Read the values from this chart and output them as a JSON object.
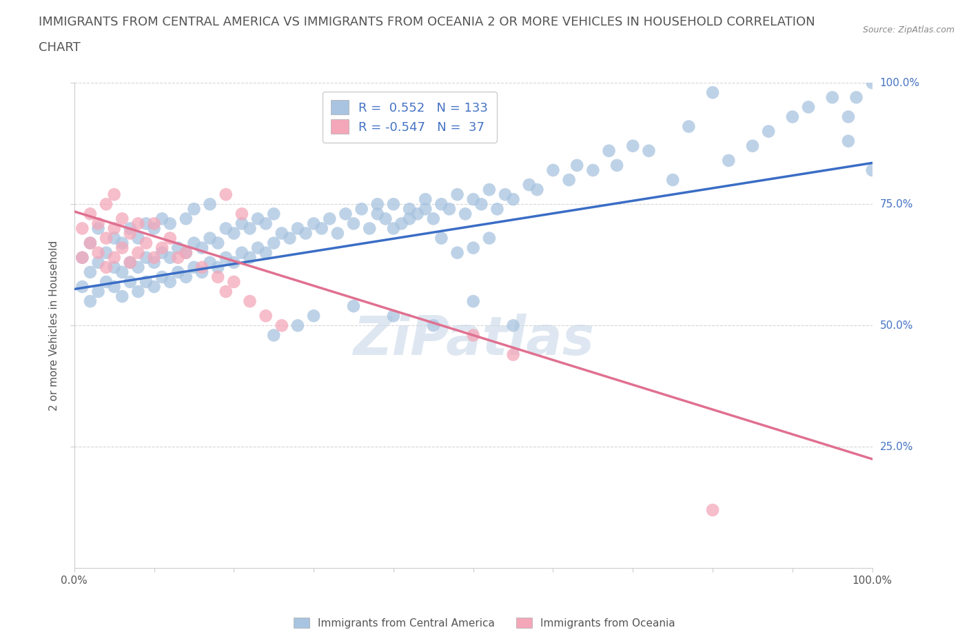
{
  "title_line1": "IMMIGRANTS FROM CENTRAL AMERICA VS IMMIGRANTS FROM OCEANIA 2 OR MORE VEHICLES IN HOUSEHOLD CORRELATION",
  "title_line2": "CHART",
  "source": "Source: ZipAtlas.com",
  "ylabel": "2 or more Vehicles in Household",
  "xlim": [
    0.0,
    1.0
  ],
  "ylim": [
    0.0,
    1.0
  ],
  "x_tick_labels": [
    "0.0%",
    "100.0%"
  ],
  "y_tick_labels": [
    "25.0%",
    "50.0%",
    "75.0%",
    "100.0%"
  ],
  "y_tick_positions": [
    0.25,
    0.5,
    0.75,
    1.0
  ],
  "legend_entries": [
    {
      "label": "Immigrants from Central America",
      "color": "#a8c4e0",
      "R": "0.552",
      "N": "133"
    },
    {
      "label": "Immigrants from Oceania",
      "color": "#f4a7b9",
      "R": "-0.547",
      "N": "37"
    }
  ],
  "blue_scatter_x": [
    0.01,
    0.01,
    0.02,
    0.02,
    0.02,
    0.03,
    0.03,
    0.03,
    0.04,
    0.04,
    0.05,
    0.05,
    0.05,
    0.06,
    0.06,
    0.06,
    0.07,
    0.07,
    0.07,
    0.08,
    0.08,
    0.08,
    0.09,
    0.09,
    0.09,
    0.1,
    0.1,
    0.1,
    0.11,
    0.11,
    0.11,
    0.12,
    0.12,
    0.12,
    0.13,
    0.13,
    0.14,
    0.14,
    0.14,
    0.15,
    0.15,
    0.15,
    0.16,
    0.16,
    0.17,
    0.17,
    0.17,
    0.18,
    0.18,
    0.19,
    0.19,
    0.2,
    0.2,
    0.21,
    0.21,
    0.22,
    0.22,
    0.23,
    0.23,
    0.24,
    0.24,
    0.25,
    0.25,
    0.26,
    0.27,
    0.28,
    0.29,
    0.3,
    0.31,
    0.32,
    0.33,
    0.34,
    0.35,
    0.36,
    0.37,
    0.38,
    0.39,
    0.4,
    0.41,
    0.42,
    0.43,
    0.44,
    0.45,
    0.46,
    0.47,
    0.48,
    0.49,
    0.5,
    0.51,
    0.52,
    0.53,
    0.54,
    0.55,
    0.57,
    0.58,
    0.6,
    0.62,
    0.63,
    0.65,
    0.67,
    0.68,
    0.7,
    0.72,
    0.75,
    0.77,
    0.8,
    0.82,
    0.85,
    0.87,
    0.9,
    0.92,
    0.95,
    0.97,
    0.97,
    0.98,
    1.0,
    1.0,
    0.38,
    0.4,
    0.42,
    0.44,
    0.46,
    0.48,
    0.5,
    0.52,
    0.4,
    0.45,
    0.5,
    0.55,
    0.3,
    0.35,
    0.25,
    0.28
  ],
  "blue_scatter_y": [
    0.58,
    0.64,
    0.55,
    0.61,
    0.67,
    0.57,
    0.63,
    0.7,
    0.59,
    0.65,
    0.58,
    0.62,
    0.68,
    0.56,
    0.61,
    0.67,
    0.59,
    0.63,
    0.7,
    0.57,
    0.62,
    0.68,
    0.59,
    0.64,
    0.71,
    0.58,
    0.63,
    0.7,
    0.6,
    0.65,
    0.72,
    0.59,
    0.64,
    0.71,
    0.61,
    0.66,
    0.6,
    0.65,
    0.72,
    0.62,
    0.67,
    0.74,
    0.61,
    0.66,
    0.63,
    0.68,
    0.75,
    0.62,
    0.67,
    0.64,
    0.7,
    0.63,
    0.69,
    0.65,
    0.71,
    0.64,
    0.7,
    0.66,
    0.72,
    0.65,
    0.71,
    0.67,
    0.73,
    0.69,
    0.68,
    0.7,
    0.69,
    0.71,
    0.7,
    0.72,
    0.69,
    0.73,
    0.71,
    0.74,
    0.7,
    0.73,
    0.72,
    0.75,
    0.71,
    0.74,
    0.73,
    0.76,
    0.72,
    0.75,
    0.74,
    0.77,
    0.73,
    0.76,
    0.75,
    0.78,
    0.74,
    0.77,
    0.76,
    0.79,
    0.78,
    0.82,
    0.8,
    0.83,
    0.82,
    0.86,
    0.83,
    0.87,
    0.86,
    0.8,
    0.91,
    0.98,
    0.84,
    0.87,
    0.9,
    0.93,
    0.95,
    0.97,
    0.88,
    0.93,
    0.97,
    1.0,
    0.82,
    0.75,
    0.7,
    0.72,
    0.74,
    0.68,
    0.65,
    0.66,
    0.68,
    0.52,
    0.5,
    0.55,
    0.5,
    0.52,
    0.54,
    0.48,
    0.5
  ],
  "pink_scatter_x": [
    0.01,
    0.01,
    0.02,
    0.02,
    0.03,
    0.03,
    0.04,
    0.04,
    0.04,
    0.05,
    0.05,
    0.05,
    0.06,
    0.06,
    0.07,
    0.07,
    0.08,
    0.08,
    0.09,
    0.1,
    0.1,
    0.11,
    0.12,
    0.13,
    0.14,
    0.16,
    0.18,
    0.19,
    0.2,
    0.22,
    0.24,
    0.26,
    0.19,
    0.21,
    0.5,
    0.55,
    0.8
  ],
  "pink_scatter_y": [
    0.64,
    0.7,
    0.67,
    0.73,
    0.65,
    0.71,
    0.62,
    0.68,
    0.75,
    0.64,
    0.7,
    0.77,
    0.66,
    0.72,
    0.63,
    0.69,
    0.65,
    0.71,
    0.67,
    0.64,
    0.71,
    0.66,
    0.68,
    0.64,
    0.65,
    0.62,
    0.6,
    0.57,
    0.59,
    0.55,
    0.52,
    0.5,
    0.77,
    0.73,
    0.48,
    0.44,
    0.12
  ],
  "blue_line_y_start": 0.575,
  "blue_line_y_end": 0.835,
  "pink_line_y_start": 0.735,
  "pink_line_y_end": 0.225,
  "blue_scatter_color": "#a8c4e0",
  "pink_scatter_color": "#f4a7b9",
  "blue_line_color": "#3a6dc5",
  "pink_line_color": "#e07090",
  "background_color": "#ffffff",
  "grid_color": "#cccccc",
  "title_fontsize": 13,
  "label_fontsize": 11,
  "tick_fontsize": 11,
  "watermark_text": "ZiPatlas",
  "watermark_color": "#c8d8e8",
  "watermark_alpha": 0.6
}
